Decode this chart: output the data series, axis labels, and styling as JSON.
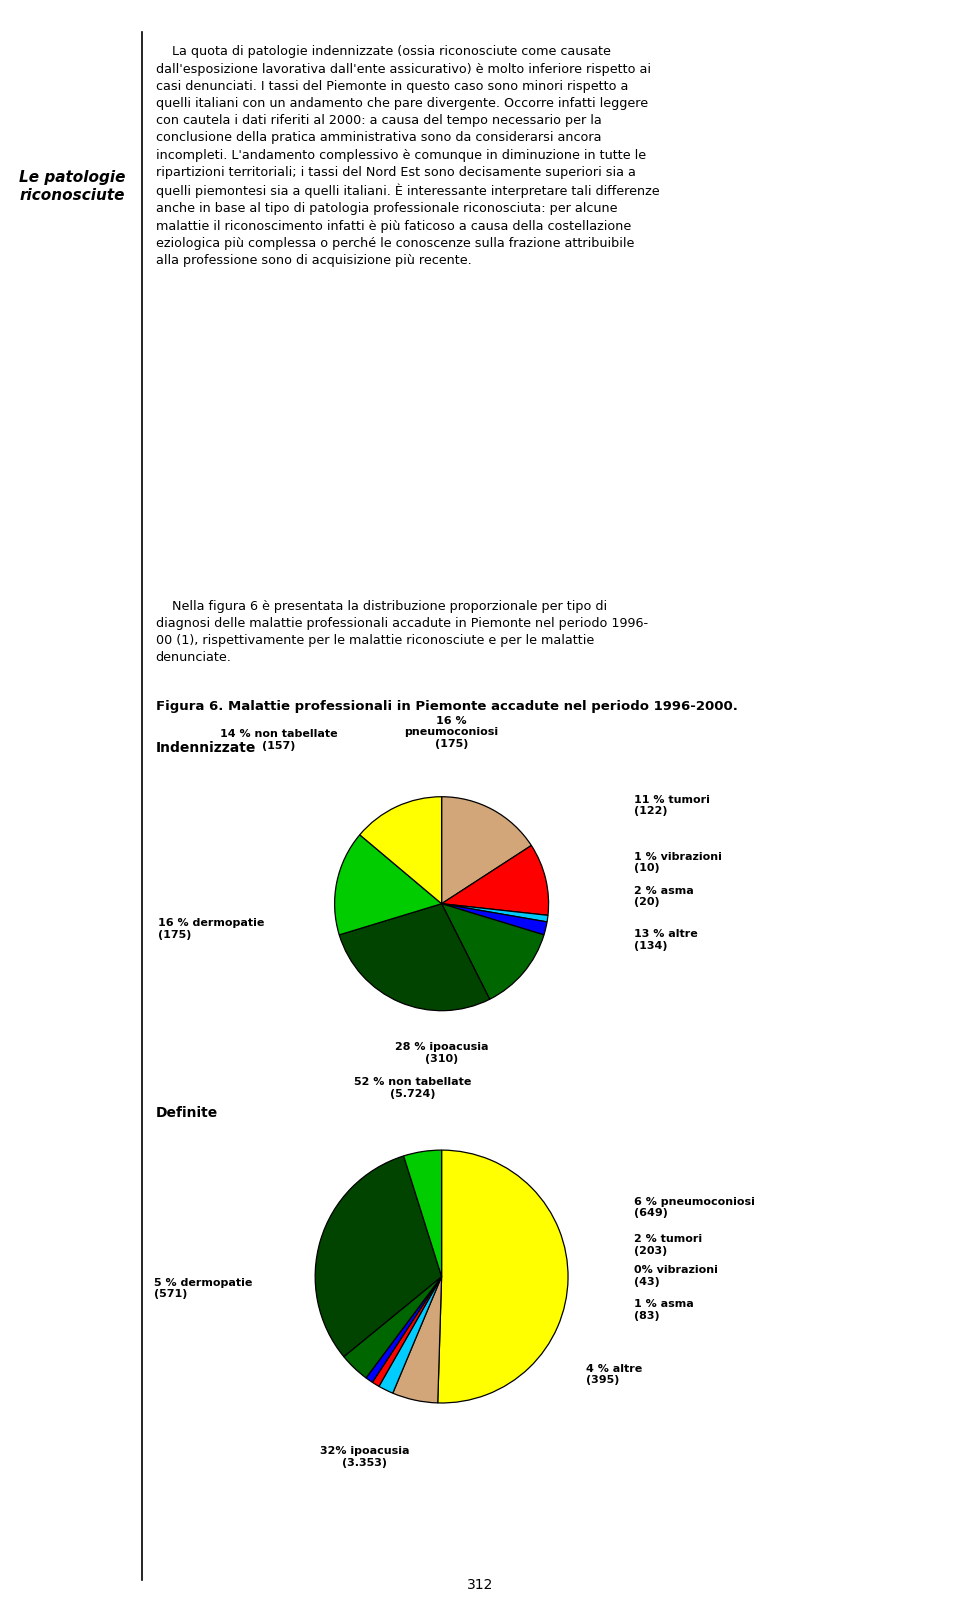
{
  "title_left": "Le patologie\nriconosciute",
  "body_text_lines": [
    "    La quota di patologie indennizzate (ossia riconosciute come causate",
    "dall'esposizione lavorativa dall'ente assicurativo) è molto inferiore rispetto ai",
    "casi denunciati. I tassi del Piemonte in questo caso sono minori rispetto a",
    "quelli italiani con un andamento che pare divergente. Occorre infatti leggere",
    "con cautela i dati riferiti al 2000: a causa del tempo necessario per la",
    "conclusione della pratica amministrativa sono da considerarsi ancora",
    "incompleti. L'andamento complessivo è comunque in diminuzione in tutte le",
    "ripartizioni territoriali; i tassi del Nord Est sono decisamente superiori sia a",
    "quelli piemontesi sia a quelli italiani. È interessante interpretare tali differenze",
    "anche in base al tipo di patologia professionale riconosciuta: per alcune",
    "malattie il riconoscimento infatti è più faticoso a causa della costellazione",
    "eziologica più complessa o perché le conoscenze sulla frazione attribuibile",
    "alla professione sono di acquisizione più recente."
  ],
  "body_text2_lines": [
    "    Nella figura 6 è presentata la distribuzione proporzionale per tipo di",
    "diagnosi delle malattie professionali accadute in Piemonte nel periodo 1996-",
    "00 (1), rispettivamente per le malattie riconosciute e per le malattie",
    "denunciate."
  ],
  "figura_label": "Figura 6. Malattie professionali in Piemonte accadute nel periodo 1996-2000.",
  "pie1_label": "Indennizzate",
  "pie2_label": "Definite",
  "pie1_sizes": [
    16,
    11,
    1,
    2,
    13,
    28,
    16,
    14
  ],
  "pie1_colors": [
    "#d2a679",
    "#ff0000",
    "#00ccff",
    "#0000ff",
    "#006600",
    "#004400",
    "#00cc00",
    "#ffff00"
  ],
  "pie2_sizes": [
    52,
    6,
    2,
    1,
    1,
    4,
    32,
    5
  ],
  "pie2_colors": [
    "#ffff00",
    "#d2a679",
    "#00ccff",
    "#ff0000",
    "#0000ff",
    "#006600",
    "#004400",
    "#00cc00"
  ],
  "page_number": "312",
  "background_color": "#ffffff",
  "text_fontsize": 9.2,
  "label_fontsize": 8.0
}
